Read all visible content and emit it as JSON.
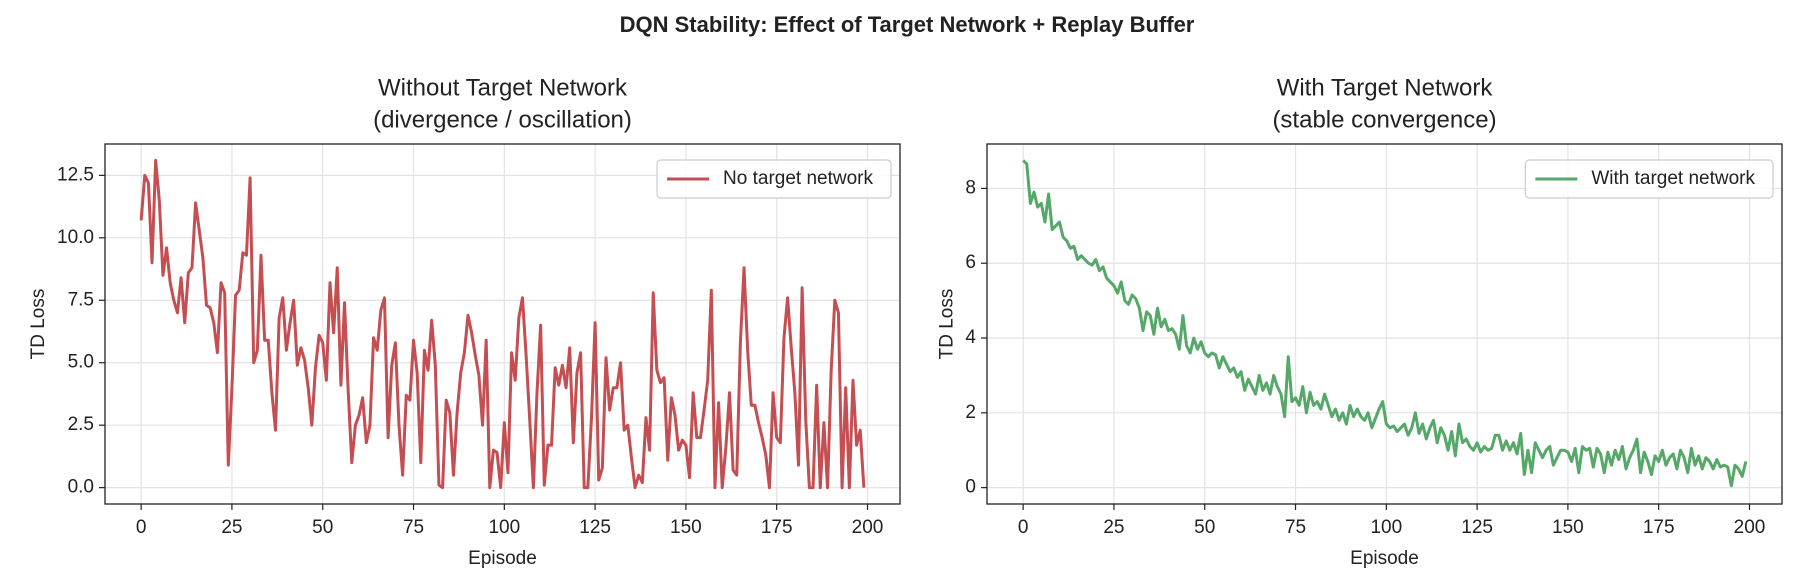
{
  "title": "DQN Stability: Effect of Target Network + Replay Buffer",
  "chart_data": [
    {
      "type": "line",
      "title": [
        "Without Target Network",
        "(divergence / oscillation)"
      ],
      "xlabel": "Episode",
      "ylabel": "TD Loss",
      "x": [
        0,
        1,
        2,
        3,
        4,
        5,
        6,
        7,
        8,
        9,
        10,
        11,
        12,
        13,
        14,
        15,
        16,
        17,
        18,
        19,
        20,
        21,
        22,
        23,
        24,
        25,
        26,
        27,
        28,
        29,
        30,
        31,
        32,
        33,
        34,
        35,
        36,
        37,
        38,
        39,
        40,
        41,
        42,
        43,
        44,
        45,
        46,
        47,
        48,
        49,
        50,
        51,
        52,
        53,
        54,
        55,
        56,
        57,
        58,
        59,
        60,
        61,
        62,
        63,
        64,
        65,
        66,
        67,
        68,
        69,
        70,
        71,
        72,
        73,
        74,
        75,
        76,
        77,
        78,
        79,
        80,
        81,
        82,
        83,
        84,
        85,
        86,
        87,
        88,
        89,
        90,
        91,
        92,
        93,
        94,
        95,
        96,
        97,
        98,
        99,
        100,
        101,
        102,
        103,
        104,
        105,
        106,
        107,
        108,
        109,
        110,
        111,
        112,
        113,
        114,
        115,
        116,
        117,
        118,
        119,
        120,
        121,
        122,
        123,
        124,
        125,
        126,
        127,
        128,
        129,
        130,
        131,
        132,
        133,
        134,
        135,
        136,
        137,
        138,
        139,
        140,
        141,
        142,
        143,
        144,
        145,
        146,
        147,
        148,
        149,
        150,
        151,
        152,
        153,
        154,
        155,
        156,
        157,
        158,
        159,
        160,
        161,
        162,
        163,
        164,
        165,
        166,
        167,
        168,
        169,
        170,
        171,
        172,
        173,
        174,
        175,
        176,
        177,
        178,
        179,
        180,
        181,
        182,
        183,
        184,
        185,
        186,
        187,
        188,
        189,
        190,
        191,
        192,
        193,
        194,
        195,
        196,
        197,
        198,
        199
      ],
      "series": [
        {
          "name": "No target network",
          "color": "#c44e52",
          "values": [
            10.7,
            12.5,
            12.2,
            9.0,
            13.1,
            11.5,
            8.5,
            9.6,
            8.2,
            7.5,
            7.0,
            8.4,
            6.6,
            8.6,
            8.8,
            11.4,
            10.3,
            9.2,
            7.3,
            7.2,
            6.6,
            5.4,
            8.2,
            7.8,
            0.9,
            4.0,
            7.7,
            7.9,
            9.4,
            9.3,
            12.4,
            5.0,
            5.5,
            9.3,
            5.9,
            5.9,
            3.8,
            2.3,
            6.8,
            7.6,
            5.5,
            6.6,
            7.5,
            4.9,
            5.6,
            5.1,
            4.0,
            2.5,
            4.8,
            6.1,
            5.8,
            4.3,
            8.2,
            6.2,
            8.8,
            4.1,
            7.4,
            3.9,
            1.0,
            2.5,
            2.9,
            3.6,
            1.8,
            2.5,
            6.0,
            5.5,
            7.1,
            7.6,
            2.0,
            4.9,
            5.8,
            2.5,
            0.5,
            3.7,
            3.5,
            5.9,
            4.6,
            1.0,
            5.5,
            4.7,
            6.7,
            4.9,
            0.1,
            0.0,
            3.5,
            3.0,
            0.5,
            3.0,
            4.6,
            5.4,
            6.9,
            6.2,
            5.3,
            4.5,
            2.5,
            5.9,
            0.0,
            1.5,
            1.4,
            0.0,
            2.6,
            0.6,
            5.4,
            4.3,
            6.8,
            7.6,
            5.3,
            2.7,
            0.0,
            3.8,
            6.5,
            0.1,
            1.7,
            1.7,
            4.8,
            4.1,
            4.9,
            4.0,
            5.6,
            1.8,
            4.6,
            5.4,
            0.0,
            0.0,
            2.8,
            6.6,
            0.3,
            0.8,
            5.2,
            3.1,
            4.0,
            4.0,
            5.0,
            2.3,
            2.5,
            1.2,
            0.0,
            0.5,
            0.2,
            2.8,
            1.5,
            7.8,
            4.7,
            4.2,
            4.4,
            1.1,
            3.6,
            2.9,
            1.5,
            1.9,
            1.7,
            0.4,
            3.8,
            2.0,
            2.0,
            3.1,
            4.3,
            7.9,
            0.0,
            3.4,
            0.0,
            1.6,
            3.8,
            0.7,
            0.5,
            5.8,
            8.8,
            5.5,
            3.3,
            3.3,
            2.6,
            2.0,
            1.3,
            0.0,
            3.8,
            2.0,
            1.8,
            6.0,
            7.6,
            5.6,
            3.8,
            0.9,
            8.0,
            2.7,
            0.0,
            0.0,
            4.1,
            0.0,
            2.6,
            0.0,
            4.7,
            7.5,
            7.0,
            0.0,
            4.0,
            0.0,
            4.3,
            1.7,
            2.3,
            0.0
          ]
        }
      ],
      "xlim": [
        -9.95,
        208.95
      ],
      "ylim": [
        -0.655,
        13.755
      ],
      "xticks": [
        0,
        25,
        50,
        75,
        100,
        125,
        150,
        175,
        200
      ],
      "yticks": [
        {
          "value": 0,
          "label": "0.0"
        },
        2.5,
        {
          "value": 5,
          "label": "5.0"
        },
        7.5,
        {
          "value": 10,
          "label": "10.0"
        },
        12.5
      ],
      "grid": true,
      "legend": "upper right"
    },
    {
      "type": "line",
      "title": [
        "With Target Network",
        "(stable convergence)"
      ],
      "xlabel": "Episode",
      "ylabel": "TD Loss",
      "x": [
        0,
        1,
        2,
        3,
        4,
        5,
        6,
        7,
        8,
        9,
        10,
        11,
        12,
        13,
        14,
        15,
        16,
        17,
        18,
        19,
        20,
        21,
        22,
        23,
        24,
        25,
        26,
        27,
        28,
        29,
        30,
        31,
        32,
        33,
        34,
        35,
        36,
        37,
        38,
        39,
        40,
        41,
        42,
        43,
        44,
        45,
        46,
        47,
        48,
        49,
        50,
        51,
        52,
        53,
        54,
        55,
        56,
        57,
        58,
        59,
        60,
        61,
        62,
        63,
        64,
        65,
        66,
        67,
        68,
        69,
        70,
        71,
        72,
        73,
        74,
        75,
        76,
        77,
        78,
        79,
        80,
        81,
        82,
        83,
        84,
        85,
        86,
        87,
        88,
        89,
        90,
        91,
        92,
        93,
        94,
        95,
        96,
        97,
        98,
        99,
        100,
        101,
        102,
        103,
        104,
        105,
        106,
        107,
        108,
        109,
        110,
        111,
        112,
        113,
        114,
        115,
        116,
        117,
        118,
        119,
        120,
        121,
        122,
        123,
        124,
        125,
        126,
        127,
        128,
        129,
        130,
        131,
        132,
        133,
        134,
        135,
        136,
        137,
        138,
        139,
        140,
        141,
        142,
        143,
        144,
        145,
        146,
        147,
        148,
        149,
        150,
        151,
        152,
        153,
        154,
        155,
        156,
        157,
        158,
        159,
        160,
        161,
        162,
        163,
        164,
        165,
        166,
        167,
        168,
        169,
        170,
        171,
        172,
        173,
        174,
        175,
        176,
        177,
        178,
        179,
        180,
        181,
        182,
        183,
        184,
        185,
        186,
        187,
        188,
        189,
        190,
        191,
        192,
        193,
        194,
        195,
        196,
        197,
        198,
        199
      ],
      "series": [
        {
          "name": "With target network",
          "color": "#55a868",
          "values": [
            8.75,
            8.65,
            7.6,
            7.9,
            7.5,
            7.6,
            7.1,
            7.85,
            6.9,
            7.0,
            7.1,
            6.7,
            6.6,
            6.4,
            6.45,
            6.1,
            6.2,
            6.1,
            6.0,
            5.95,
            6.1,
            5.8,
            5.9,
            5.6,
            5.5,
            5.4,
            5.2,
            5.5,
            5.0,
            4.9,
            5.15,
            5.05,
            4.8,
            4.2,
            4.7,
            4.6,
            4.1,
            4.8,
            4.3,
            4.5,
            4.2,
            4.25,
            4.1,
            3.7,
            4.6,
            3.8,
            3.6,
            4.0,
            3.7,
            3.9,
            3.6,
            3.5,
            3.6,
            3.55,
            3.2,
            3.5,
            3.3,
            3.1,
            3.2,
            2.95,
            3.1,
            2.6,
            2.9,
            2.7,
            2.5,
            3.0,
            2.6,
            2.8,
            2.5,
            3.0,
            2.7,
            2.5,
            1.9,
            3.5,
            2.3,
            2.4,
            2.2,
            2.7,
            2.0,
            2.55,
            2.2,
            2.3,
            2.1,
            2.5,
            2.2,
            1.9,
            2.1,
            1.8,
            2.0,
            1.7,
            2.2,
            1.9,
            2.1,
            1.9,
            1.8,
            2.0,
            1.6,
            1.85,
            2.1,
            2.3,
            1.7,
            1.6,
            1.65,
            1.5,
            1.6,
            1.7,
            1.4,
            1.6,
            2.0,
            1.45,
            1.7,
            1.3,
            1.6,
            1.8,
            1.2,
            1.6,
            1.4,
            1.0,
            1.5,
            0.85,
            1.7,
            1.2,
            1.3,
            1.1,
            1.0,
            1.2,
            0.95,
            1.1,
            1.0,
            1.05,
            1.4,
            1.4,
            1.0,
            1.25,
            1.0,
            1.2,
            0.9,
            1.45,
            0.35,
            1.0,
            0.4,
            1.2,
            1.0,
            0.8,
            1.0,
            1.1,
            0.6,
            0.8,
            1.0,
            1.0,
            0.95,
            0.7,
            1.05,
            0.4,
            1.1,
            1.0,
            1.05,
            0.55,
            1.05,
            0.9,
            0.4,
            0.95,
            0.6,
            1.0,
            0.75,
            1.1,
            0.5,
            0.8,
            1.0,
            1.3,
            0.4,
            0.95,
            0.7,
            0.35,
            0.85,
            0.7,
            1.0,
            0.6,
            0.8,
            0.9,
            0.5,
            1.0,
            0.8,
            0.4,
            1.05,
            0.6,
            0.85,
            0.5,
            0.8,
            0.7,
            0.5,
            0.75,
            0.55,
            0.6,
            0.55,
            0.05,
            0.6,
            0.5,
            0.3,
            0.7
          ]
        }
      ],
      "xlim": [
        -9.95,
        208.95
      ],
      "ylim": [
        -0.4375,
        9.1875
      ],
      "xticks": [
        0,
        25,
        50,
        75,
        100,
        125,
        150,
        175,
        200
      ],
      "yticks": [
        0,
        2,
        4,
        6,
        8
      ],
      "grid": true,
      "legend": "upper right"
    }
  ]
}
